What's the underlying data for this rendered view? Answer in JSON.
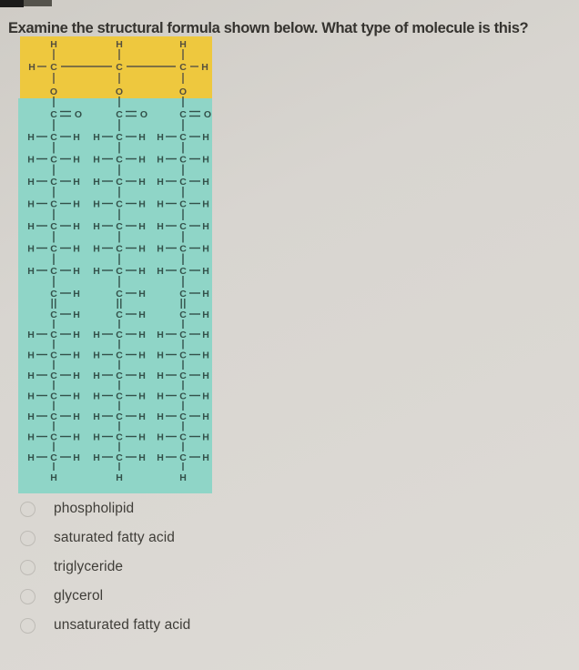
{
  "question": "Examine the structural formula shown below. What type of molecule is this?",
  "options": [
    {
      "label": "phospholipid"
    },
    {
      "label": "saturated fatty acid"
    },
    {
      "label": "triglyceride"
    },
    {
      "label": "glycerol"
    },
    {
      "label": "unsaturated fatty acid"
    }
  ],
  "molecule": {
    "description": "Structural formula of a triglyceride: glycerol backbone (yellow band) bonded through ester C=O groups to three fatty-acid chains (teal band), each chain containing one C=C double bond",
    "labels": {
      "carbon": "C",
      "hydrogen": "H",
      "oxygen": "O"
    },
    "backbone": {
      "carbon_count": 3,
      "each_carbon_has_h_above": true,
      "end_carbons_have_h_side": true,
      "oxygen_below_each_carbon": true
    },
    "chains": {
      "count": 3,
      "carbonyl": "C=O",
      "upper_ch2_rows": 7,
      "double_bond_carbons": 2,
      "lower_ch2_rows": 7,
      "terminal": "H"
    }
  },
  "colors": {
    "backbone_region": "#eec83e",
    "chain_region": "#8fd5c7",
    "page_background": "#d8d5d0",
    "page_background_dark": "#cfccc6",
    "question_text": "#35332f",
    "option_text": "#3f3d38"
  }
}
